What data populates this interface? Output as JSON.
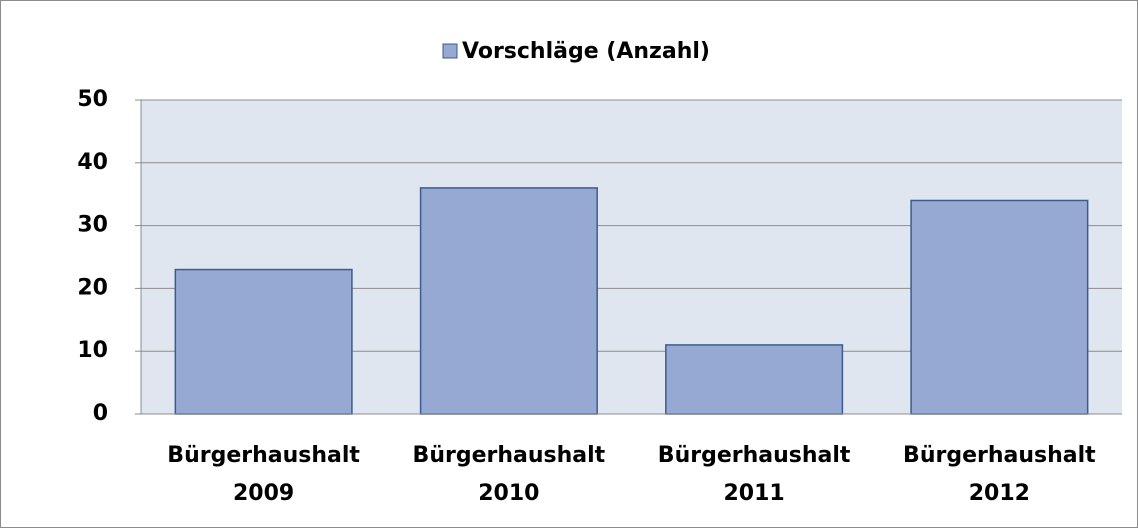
{
  "chart_data": {
    "type": "bar",
    "categories": [
      "Bürgerhaushalt 2009",
      "Bürgerhaushalt 2010",
      "Bürgerhaushalt 2011",
      "Bürgerhaushalt 2012"
    ],
    "series": [
      {
        "name": "Vorschläge (Anzahl)",
        "color": "#95a9d3",
        "values": [
          23,
          36,
          11,
          34
        ]
      }
    ],
    "ylim": [
      0,
      50
    ],
    "yticks": [
      0,
      10,
      20,
      30,
      40,
      50
    ],
    "grid": true,
    "legend": "top"
  }
}
